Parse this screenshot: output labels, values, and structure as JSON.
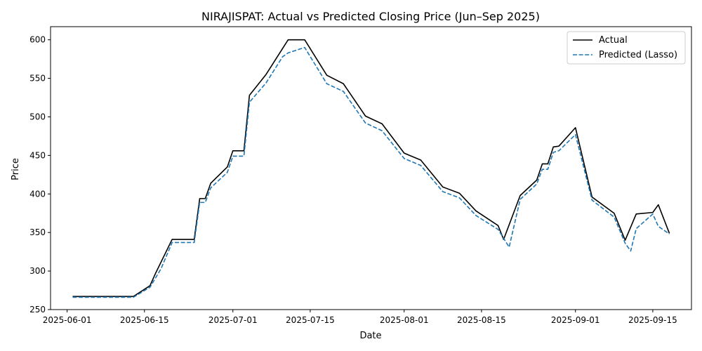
{
  "chart_data": {
    "type": "line",
    "title": "NIRAJISPAT: Actual vs Predicted Closing Price (Jun–Sep 2025)",
    "xlabel": "Date",
    "ylabel": "Price",
    "x_tick_labels": [
      "2025-06-01",
      "2025-06-15",
      "2025-07-01",
      "2025-07-15",
      "2025-08-01",
      "2025-08-15",
      "2025-09-01",
      "2025-09-15"
    ],
    "y_ticks": [
      250,
      300,
      350,
      400,
      450,
      500,
      550,
      600
    ],
    "ylim": [
      250,
      617
    ],
    "xlim": [
      "2025-05-29",
      "2025-09-22"
    ],
    "grid": false,
    "legend_position": "top-right",
    "series": [
      {
        "name": "Actual",
        "color": "#000000",
        "style": "solid",
        "points": [
          [
            "2025-06-02",
            267
          ],
          [
            "2025-06-13",
            267
          ],
          [
            "2025-06-16",
            281
          ],
          [
            "2025-06-17",
            297
          ],
          [
            "2025-06-20",
            341
          ],
          [
            "2025-06-24",
            341
          ],
          [
            "2025-06-25",
            394
          ],
          [
            "2025-06-26",
            394
          ],
          [
            "2025-06-27",
            414
          ],
          [
            "2025-06-30",
            435
          ],
          [
            "2025-07-01",
            456
          ],
          [
            "2025-07-03",
            456
          ],
          [
            "2025-07-04",
            528
          ],
          [
            "2025-07-07",
            555
          ],
          [
            "2025-07-11",
            600
          ],
          [
            "2025-07-14",
            600
          ],
          [
            "2025-07-18",
            554
          ],
          [
            "2025-07-21",
            543
          ],
          [
            "2025-07-25",
            501
          ],
          [
            "2025-07-28",
            491
          ],
          [
            "2025-08-01",
            453
          ],
          [
            "2025-08-04",
            444
          ],
          [
            "2025-08-08",
            409
          ],
          [
            "2025-08-11",
            401
          ],
          [
            "2025-08-14",
            378
          ],
          [
            "2025-08-18",
            359
          ],
          [
            "2025-08-19",
            341
          ],
          [
            "2025-08-22",
            398
          ],
          [
            "2025-08-25",
            418
          ],
          [
            "2025-08-26",
            439
          ],
          [
            "2025-08-27",
            439
          ],
          [
            "2025-08-28",
            461
          ],
          [
            "2025-08-29",
            462
          ],
          [
            "2025-09-01",
            486
          ],
          [
            "2025-09-04",
            396
          ],
          [
            "2025-09-08",
            375
          ],
          [
            "2025-09-10",
            340
          ],
          [
            "2025-09-12",
            374
          ],
          [
            "2025-09-15",
            376
          ],
          [
            "2025-09-16",
            386
          ],
          [
            "2025-09-18",
            349
          ]
        ]
      },
      {
        "name": "Predicted (Lasso)",
        "color": "#1f77b4",
        "style": "dashed",
        "points": [
          [
            "2025-06-02",
            266
          ],
          [
            "2025-06-13",
            266
          ],
          [
            "2025-06-16",
            279
          ],
          [
            "2025-06-17",
            291
          ],
          [
            "2025-06-18",
            303
          ],
          [
            "2025-06-20",
            337
          ],
          [
            "2025-06-24",
            337
          ],
          [
            "2025-06-25",
            389
          ],
          [
            "2025-06-26",
            389
          ],
          [
            "2025-06-27",
            408
          ],
          [
            "2025-06-30",
            428
          ],
          [
            "2025-07-01",
            449
          ],
          [
            "2025-07-03",
            449
          ],
          [
            "2025-07-04",
            519
          ],
          [
            "2025-07-07",
            544
          ],
          [
            "2025-07-10",
            578
          ],
          [
            "2025-07-11",
            583
          ],
          [
            "2025-07-14",
            590
          ],
          [
            "2025-07-18",
            543
          ],
          [
            "2025-07-21",
            533
          ],
          [
            "2025-07-25",
            492
          ],
          [
            "2025-07-28",
            482
          ],
          [
            "2025-08-01",
            446
          ],
          [
            "2025-08-04",
            437
          ],
          [
            "2025-08-08",
            403
          ],
          [
            "2025-08-11",
            395
          ],
          [
            "2025-08-14",
            372
          ],
          [
            "2025-08-18",
            354
          ],
          [
            "2025-08-20",
            331
          ],
          [
            "2025-08-22",
            393
          ],
          [
            "2025-08-25",
            413
          ],
          [
            "2025-08-26",
            432
          ],
          [
            "2025-08-27",
            432
          ],
          [
            "2025-08-28",
            454
          ],
          [
            "2025-08-29",
            456
          ],
          [
            "2025-09-01",
            477
          ],
          [
            "2025-09-04",
            392
          ],
          [
            "2025-09-08",
            370
          ],
          [
            "2025-09-10",
            336
          ],
          [
            "2025-09-11",
            326
          ],
          [
            "2025-09-12",
            355
          ],
          [
            "2025-09-15",
            374
          ],
          [
            "2025-09-16",
            358
          ],
          [
            "2025-09-18",
            348
          ]
        ]
      }
    ]
  }
}
